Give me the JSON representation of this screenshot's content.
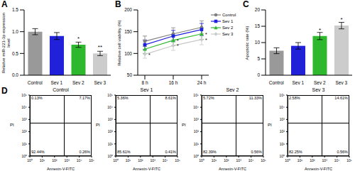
{
  "chart_data": [
    {
      "title": "A",
      "type": "bar",
      "categories": [
        "Control",
        "Sev 1",
        "Sev 2",
        "Sev 3"
      ],
      "values": [
        1.0,
        0.9,
        0.7,
        0.5
      ],
      "errors": [
        0.07,
        0.08,
        0.06,
        0.05
      ],
      "significance": [
        null,
        null,
        "*",
        "**"
      ],
      "colors": [
        "#999999",
        "#2121d9",
        "#2eb82e",
        "#cccccc"
      ],
      "y_label": "Relative miR-221-3p expression level",
      "ylim": [
        0,
        1.5
      ],
      "yticks": [
        {
          "value": 0,
          "label": "0.0"
        },
        {
          "value": 0.5,
          "label": "0.5"
        },
        {
          "value": 1,
          "label": "1.0"
        },
        {
          "value": 1.5,
          "label": "1.5"
        }
      ]
    },
    {
      "title": "B",
      "type": "line",
      "categories": [
        "8 h",
        "16 h",
        "24 h"
      ],
      "y_label": "Relative cell viability (%)",
      "ylim": [
        50,
        200
      ],
      "yticks": [
        50,
        100,
        150,
        200
      ],
      "legend": "right",
      "series": [
        {
          "name": "Control",
          "color": "#7f7f7f",
          "marker": "circle",
          "values": [
            128,
            145,
            160
          ],
          "errors": [
            12,
            14,
            15
          ]
        },
        {
          "name": "Sev 1",
          "color": "#1f1fe0",
          "marker": "square",
          "values": [
            120,
            140,
            155
          ],
          "errors": [
            11,
            13,
            14
          ]
        },
        {
          "name": "Sev 2",
          "color": "#2eb82e",
          "marker": "triangle",
          "values": [
            110,
            130,
            145
          ],
          "errors": [
            10,
            12,
            13
          ],
          "significance": [
            null,
            "*",
            "*"
          ]
        },
        {
          "name": "Sev 3",
          "color": "#c8c8c8",
          "marker": "diamond",
          "values": [
            98,
            118,
            132
          ],
          "errors": [
            9,
            11,
            12
          ],
          "significance": [
            "*",
            "*",
            "*"
          ]
        }
      ]
    },
    {
      "title": "C",
      "type": "bar",
      "categories": [
        "Control",
        "Sev 1",
        "Sev 2",
        "Sev 3"
      ],
      "values": [
        7.5,
        9,
        12,
        15.2
      ],
      "errors": [
        0.9,
        1.0,
        1.1,
        1.0
      ],
      "significance": [
        null,
        null,
        "*",
        "*"
      ],
      "colors": [
        "#999999",
        "#2121d9",
        "#2eb82e",
        "#cccccc"
      ],
      "y_label": "Apoptotic rate (%)",
      "ylim": [
        0,
        20
      ],
      "yticks": [
        0,
        5,
        10,
        15,
        20
      ]
    },
    {
      "title": "D",
      "type": "quadrant",
      "x_label": "Annexin-V-FITC",
      "y_label": "PI",
      "log": true,
      "xlim": [
        1,
        100000
      ],
      "ylim": [
        1,
        100000
      ],
      "xticks": [
        {
          "value": 1,
          "label": "10⁰"
        },
        {
          "value": 10,
          "label": "10¹"
        },
        {
          "value": 100,
          "label": "10²"
        },
        {
          "value": 1000,
          "label": "10³"
        },
        {
          "value": 10000,
          "label": "10⁴"
        },
        {
          "value": 100000,
          "label": "10⁵"
        }
      ],
      "yticks": [
        {
          "value": 1,
          "label": "10⁰"
        },
        {
          "value": 10,
          "label": "10¹"
        },
        {
          "value": 100,
          "label": "10²"
        },
        {
          "value": 1000,
          "label": "10³"
        },
        {
          "value": 10000,
          "label": "10⁴"
        },
        {
          "value": 100000,
          "label": "10⁵"
        }
      ],
      "panels": [
        {
          "title": "Control",
          "values": [
            0.13,
            7.17,
            92.44,
            0.26
          ],
          "value_labels": [
            "0.13%",
            "7.17%",
            "92.44%",
            "0.26%"
          ]
        },
        {
          "title": "Sev 1",
          "values": [
            5.36,
            8.61,
            85.61,
            0.41
          ],
          "value_labels": [
            "5.36%",
            "8.61%",
            "85.61%",
            "0.41%"
          ]
        },
        {
          "title": "Sev 2",
          "values": [
            5.72,
            11.33,
            82.39,
            0.56
          ],
          "value_labels": [
            "5.72%",
            "11.33%",
            "82.39%",
            "0.56%"
          ]
        },
        {
          "title": "Sev 3",
          "values": [
            2.58,
            14.61,
            82.25,
            0.56
          ],
          "value_labels": [
            "2.58%",
            "14.61%",
            "82.25%",
            "0.56%"
          ]
        }
      ]
    }
  ]
}
